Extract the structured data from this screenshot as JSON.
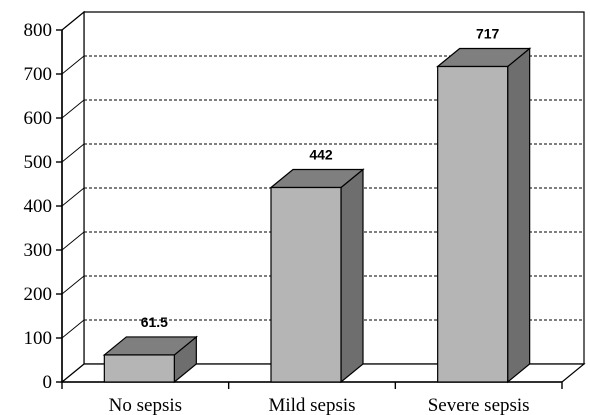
{
  "chart_data": {
    "type": "bar",
    "categories": [
      "No sepsis",
      "Mild sepsis",
      "Severe sepsis"
    ],
    "values": [
      61.5,
      442,
      717
    ],
    "data_labels": [
      "61.5",
      "442",
      "717"
    ],
    "ylim": [
      0,
      800
    ],
    "yticks": [
      0,
      100,
      200,
      300,
      400,
      500,
      600,
      700,
      800
    ],
    "ytick_labels": [
      "0",
      "100",
      "200",
      "300",
      "400",
      "500",
      "600",
      "700",
      "800"
    ],
    "grid": "dashed horizontal",
    "style": "3d",
    "colors": {
      "bar_front": "#b5b5b5",
      "bar_side": "#6e6e6e",
      "bar_top": "#7f7f7f",
      "grid": "#000000"
    }
  }
}
